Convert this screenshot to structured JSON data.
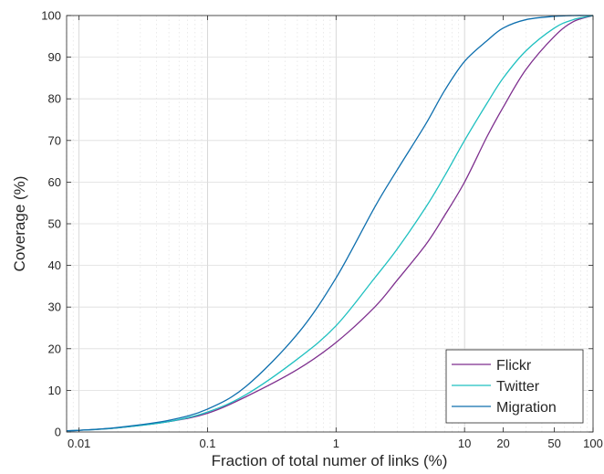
{
  "chart_data": {
    "type": "line",
    "x_scale": "log",
    "xlim": [
      0.008,
      100
    ],
    "ylim": [
      0,
      100
    ],
    "grid": true,
    "legend_position": "bottom-right",
    "xlabel": "Fraction of total numer of links (%)",
    "ylabel": "Coverage (%)",
    "x_ticks": [
      0.01,
      0.1,
      1,
      10,
      20,
      50,
      100
    ],
    "x_tick_labels": [
      "0.01",
      "0.1",
      "1",
      "10",
      "20",
      "50",
      "100"
    ],
    "y_ticks": [
      0,
      10,
      20,
      30,
      40,
      50,
      60,
      70,
      80,
      90,
      100
    ],
    "y_tick_labels": [
      "0",
      "10",
      "20",
      "30",
      "40",
      "50",
      "60",
      "70",
      "80",
      "90",
      "100"
    ],
    "series": [
      {
        "name": "Flickr",
        "color": "#7E2F8E",
        "x": [
          0.008,
          0.01,
          0.02,
          0.05,
          0.1,
          0.2,
          0.5,
          1,
          2,
          3,
          5,
          7,
          10,
          15,
          20,
          30,
          50,
          70,
          100
        ],
        "y": [
          0.3,
          0.4,
          1.0,
          2.5,
          4.5,
          8.5,
          15,
          21.5,
          30,
          36.5,
          45,
          52,
          60,
          71,
          78,
          87,
          95,
          98.5,
          100
        ]
      },
      {
        "name": "Twitter",
        "color": "#1FC0C0",
        "x": [
          0.008,
          0.01,
          0.02,
          0.05,
          0.1,
          0.2,
          0.5,
          1,
          2,
          3,
          5,
          7,
          10,
          15,
          20,
          30,
          50,
          70,
          100
        ],
        "y": [
          0.3,
          0.4,
          1.0,
          2.5,
          4.8,
          9,
          17.5,
          25.5,
          37,
          44,
          54,
          61.5,
          70,
          79,
          85,
          91.5,
          97,
          99,
          100
        ]
      },
      {
        "name": "Migration",
        "color": "#0E6FAE",
        "x": [
          0.008,
          0.01,
          0.02,
          0.05,
          0.1,
          0.2,
          0.5,
          1,
          2,
          3,
          5,
          7,
          10,
          15,
          20,
          30,
          50,
          70,
          100
        ],
        "y": [
          0.3,
          0.4,
          1.1,
          2.8,
          5.5,
          11,
          23.5,
          37,
          54,
          63,
          74,
          82,
          89,
          94,
          97,
          99,
          99.8,
          100,
          100
        ]
      }
    ]
  }
}
